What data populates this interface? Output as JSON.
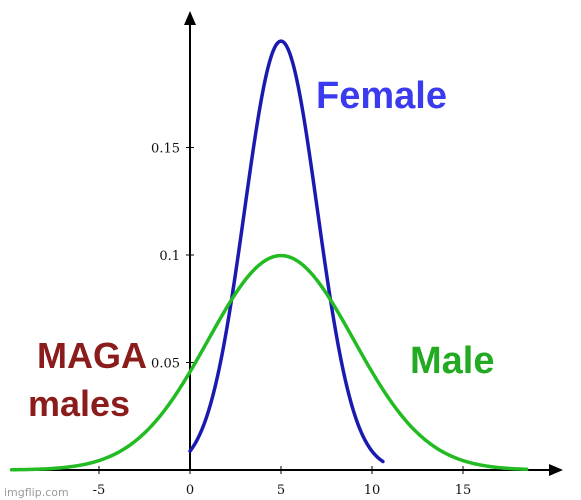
{
  "chart_data": {
    "type": "line",
    "title": "",
    "xlabel": "",
    "ylabel": "",
    "xlim": [
      -9.8,
      19.5
    ],
    "ylim": [
      0,
      0.215
    ],
    "x_ticks": [
      {
        "value": -5,
        "label": "-5"
      },
      {
        "value": 0,
        "label": "0"
      },
      {
        "value": 5,
        "label": "5"
      },
      {
        "value": 10,
        "label": "10"
      },
      {
        "value": 15,
        "label": "15"
      }
    ],
    "y_ticks": [
      {
        "value": 0.05,
        "label": "0.05"
      },
      {
        "value": 0.1,
        "label": "0.1"
      },
      {
        "value": 0.15,
        "label": "0.15"
      }
    ],
    "grid": false,
    "series": [
      {
        "name": "Female",
        "color": "#1a1ab0",
        "mean": 5,
        "sd": 2,
        "x_range": [
          0,
          10.6
        ]
      },
      {
        "name": "Male",
        "color": "#22bb22",
        "mean": 5,
        "sd": 4,
        "x_range": [
          -9.8,
          18.5
        ]
      }
    ],
    "annotations": [
      {
        "text": "Female",
        "color": "#3a3aee"
      },
      {
        "text": "Male",
        "color": "#22aa22"
      },
      {
        "text_lines": [
          "MAGA",
          "males"
        ],
        "color": "#8b1c1c"
      }
    ]
  },
  "watermark": "imgflip.com"
}
